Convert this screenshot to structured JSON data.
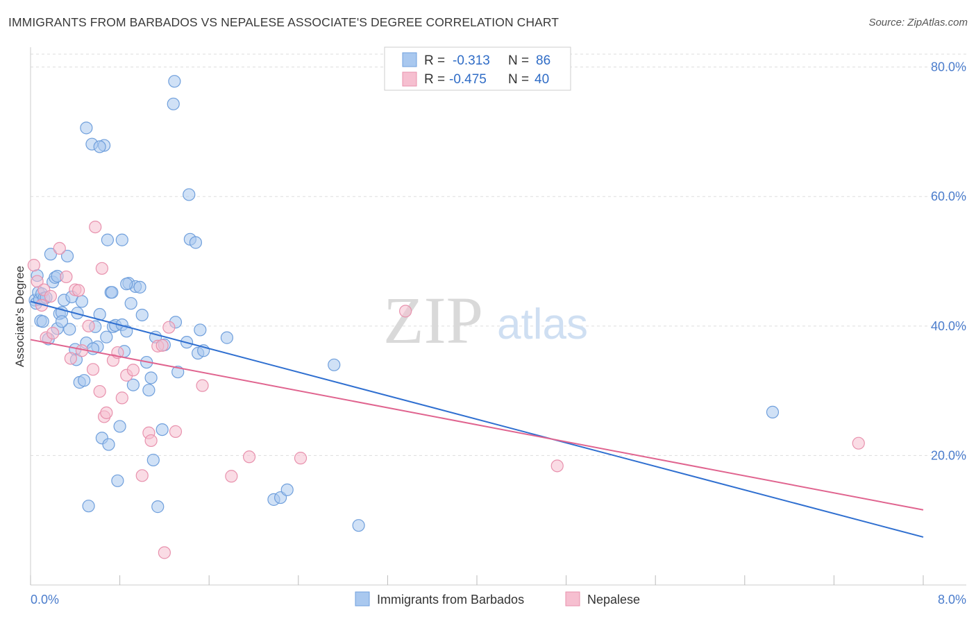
{
  "header": {
    "title": "IMMIGRANTS FROM BARBADOS VS NEPALESE ASSOCIATE'S DEGREE CORRELATION CHART",
    "source": "Source: ZipAtlas.com"
  },
  "watermark": {
    "zip": "ZIP",
    "atlas": "atlas"
  },
  "legend": {
    "rows": [
      {
        "r_label": "R =",
        "r_value": "-0.313",
        "n_label": "N =",
        "n_value": "86"
      },
      {
        "r_label": "R =",
        "r_value": "-0.475",
        "n_label": "N =",
        "n_value": "40"
      }
    ]
  },
  "colors": {
    "blue_fill": "#a9c8ef",
    "blue_stroke": "#6f9fdc",
    "blue_line": "#2f6fd0",
    "pink_fill": "#f6bfd0",
    "pink_stroke": "#e891ad",
    "pink_line": "#e0648f",
    "grid": "#dddddd",
    "tick_label": "#4a7ccc"
  },
  "chart_data": {
    "type": "scatter",
    "title": "IMMIGRANTS FROM BARBADOS VS NEPALESE ASSOCIATE'S DEGREE CORRELATION CHART",
    "xlabel": "",
    "ylabel": "Associate's Degree",
    "xlim": [
      0,
      8
    ],
    "ylim": [
      0,
      82
    ],
    "x_tick_labels": [
      "0.0%",
      "8.0%"
    ],
    "y_ticks": [
      20,
      40,
      60,
      80
    ],
    "y_tick_labels": [
      "20.0%",
      "40.0%",
      "60.0%",
      "80.0%"
    ],
    "grid": true,
    "legend_position": "top-center",
    "series": [
      {
        "name": "Immigrants from Barbados",
        "color": "#a9c8ef",
        "r": -0.313,
        "n": 86,
        "trend": {
          "x": [
            0,
            8
          ],
          "y": [
            43.8,
            7.4
          ]
        },
        "points": [
          [
            0.04,
            44.0
          ],
          [
            0.05,
            43.5
          ],
          [
            0.06,
            47.8
          ],
          [
            0.07,
            45.2
          ],
          [
            0.08,
            44.1
          ],
          [
            0.09,
            40.8
          ],
          [
            0.1,
            45.0
          ],
          [
            0.11,
            40.7
          ],
          [
            0.12,
            44.3
          ],
          [
            0.14,
            44.4
          ],
          [
            0.16,
            38.0
          ],
          [
            0.18,
            51.1
          ],
          [
            0.2,
            46.8
          ],
          [
            0.22,
            47.5
          ],
          [
            0.24,
            39.6
          ],
          [
            0.26,
            41.9
          ],
          [
            0.28,
            42.1
          ],
          [
            0.3,
            44.0
          ],
          [
            0.33,
            50.8
          ],
          [
            0.35,
            39.5
          ],
          [
            0.37,
            44.5
          ],
          [
            0.4,
            36.4
          ],
          [
            0.42,
            42.0
          ],
          [
            0.44,
            31.3
          ],
          [
            0.46,
            43.8
          ],
          [
            0.48,
            31.6
          ],
          [
            0.5,
            37.4
          ],
          [
            0.52,
            12.2
          ],
          [
            0.55,
            68.1
          ],
          [
            0.58,
            39.9
          ],
          [
            0.6,
            36.8
          ],
          [
            0.62,
            41.8
          ],
          [
            0.64,
            22.7
          ],
          [
            0.66,
            67.9
          ],
          [
            0.68,
            38.3
          ],
          [
            0.7,
            21.7
          ],
          [
            0.72,
            45.2
          ],
          [
            0.74,
            39.9
          ],
          [
            0.76,
            40.1
          ],
          [
            0.78,
            16.1
          ],
          [
            0.8,
            24.5
          ],
          [
            0.82,
            40.2
          ],
          [
            0.84,
            36.1
          ],
          [
            0.86,
            39.2
          ],
          [
            0.88,
            46.6
          ],
          [
            0.9,
            43.5
          ],
          [
            0.92,
            30.9
          ],
          [
            0.94,
            46.1
          ],
          [
            1.04,
            34.4
          ],
          [
            1.06,
            30.1
          ],
          [
            1.08,
            32.0
          ],
          [
            1.1,
            19.3
          ],
          [
            1.12,
            38.3
          ],
          [
            1.14,
            12.1
          ],
          [
            1.18,
            24.0
          ],
          [
            1.2,
            37.1
          ],
          [
            1.3,
            40.6
          ],
          [
            1.32,
            32.9
          ],
          [
            1.4,
            37.5
          ],
          [
            1.5,
            35.8
          ],
          [
            1.52,
            39.4
          ],
          [
            1.55,
            36.2
          ],
          [
            1.76,
            38.2
          ],
          [
            1.43,
            53.4
          ],
          [
            1.48,
            52.9
          ],
          [
            1.42,
            60.3
          ],
          [
            1.28,
            74.3
          ],
          [
            1.29,
            77.8
          ],
          [
            0.5,
            70.6
          ],
          [
            0.69,
            53.3
          ],
          [
            0.62,
            67.7
          ],
          [
            0.82,
            53.3
          ],
          [
            0.41,
            34.8
          ],
          [
            0.56,
            36.5
          ],
          [
            0.98,
            46.0
          ],
          [
            1.0,
            41.7
          ],
          [
            2.18,
            13.2
          ],
          [
            2.24,
            13.5
          ],
          [
            2.3,
            14.7
          ],
          [
            2.72,
            34.0
          ],
          [
            2.94,
            9.2
          ],
          [
            6.65,
            26.7
          ],
          [
            0.73,
            45.2
          ],
          [
            0.24,
            47.7
          ],
          [
            0.28,
            40.7
          ],
          [
            0.86,
            46.5
          ]
        ]
      },
      {
        "name": "Nepalese",
        "color": "#f6bfd0",
        "r": -0.475,
        "n": 40,
        "trend": {
          "x": [
            0,
            8
          ],
          "y": [
            37.9,
            11.6
          ]
        },
        "points": [
          [
            0.03,
            49.4
          ],
          [
            0.06,
            46.9
          ],
          [
            0.1,
            43.2
          ],
          [
            0.12,
            45.6
          ],
          [
            0.14,
            38.2
          ],
          [
            0.18,
            44.6
          ],
          [
            0.2,
            38.9
          ],
          [
            0.26,
            52.0
          ],
          [
            0.32,
            47.6
          ],
          [
            0.36,
            35.0
          ],
          [
            0.4,
            45.6
          ],
          [
            0.43,
            45.5
          ],
          [
            0.46,
            36.2
          ],
          [
            0.52,
            40.0
          ],
          [
            0.56,
            33.3
          ],
          [
            0.58,
            55.3
          ],
          [
            0.62,
            29.9
          ],
          [
            0.64,
            48.9
          ],
          [
            0.66,
            26.0
          ],
          [
            0.68,
            26.6
          ],
          [
            0.74,
            34.7
          ],
          [
            0.78,
            35.9
          ],
          [
            0.82,
            28.9
          ],
          [
            0.86,
            32.4
          ],
          [
            0.92,
            33.2
          ],
          [
            1.0,
            16.9
          ],
          [
            1.06,
            23.5
          ],
          [
            1.08,
            22.3
          ],
          [
            1.14,
            36.9
          ],
          [
            1.2,
            5.0
          ],
          [
            1.24,
            39.8
          ],
          [
            1.3,
            23.7
          ],
          [
            1.54,
            30.8
          ],
          [
            1.8,
            16.8
          ],
          [
            1.96,
            19.8
          ],
          [
            2.42,
            19.6
          ],
          [
            3.36,
            42.3
          ],
          [
            4.72,
            18.4
          ],
          [
            7.42,
            21.9
          ],
          [
            1.18,
            37.0
          ]
        ]
      }
    ]
  },
  "bottom_legend": {
    "items": [
      "Immigrants from Barbados",
      "Nepalese"
    ]
  }
}
